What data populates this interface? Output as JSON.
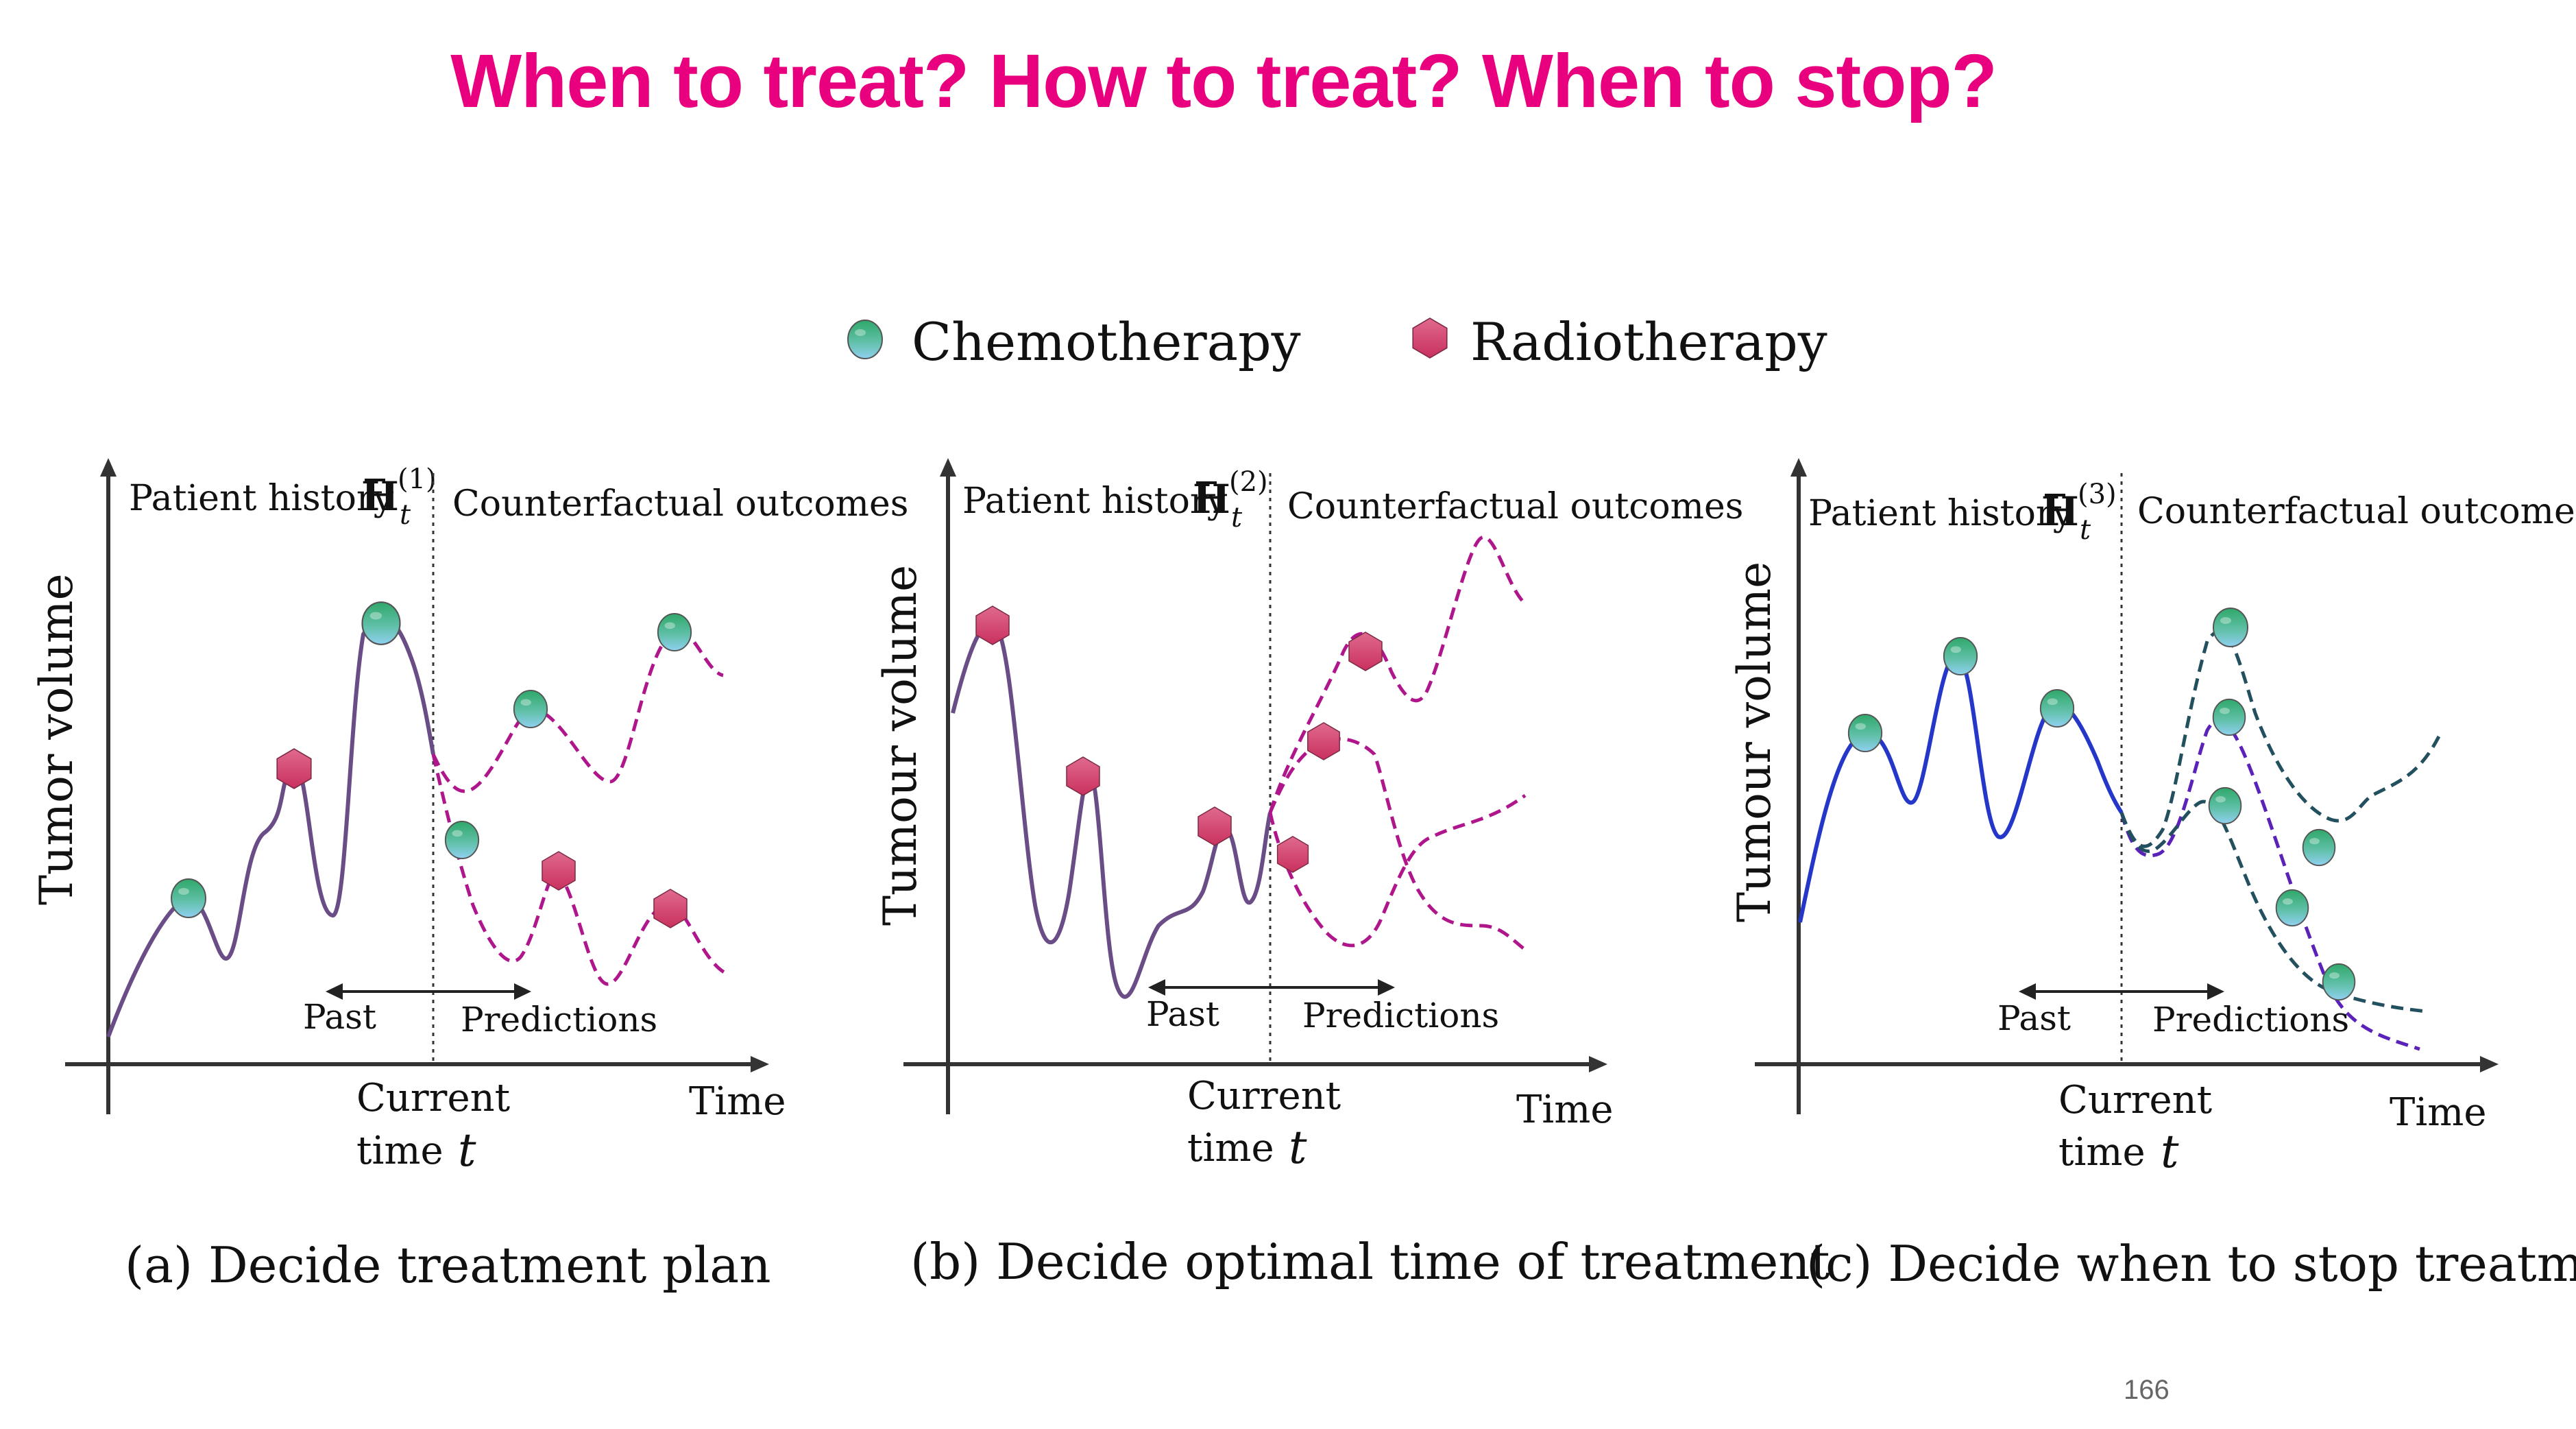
{
  "slide": {
    "title": "When to treat? How to treat? When to stop?",
    "page_number": "166"
  },
  "legend": {
    "chemo_label": "Chemotherapy",
    "radio_label": "Radiotherapy"
  },
  "panels": [
    {
      "ylabel": "Tumor volume",
      "history_label": "Patient history",
      "history_symbol": "H",
      "history_sub": "t",
      "history_sup": "(1)",
      "cf_label": "Counterfactual outcomes",
      "past_label": "Past",
      "pred_label": "Predictions",
      "current_line1": "Current",
      "current_line2": "time",
      "current_var": "t",
      "time_label": "Time",
      "caption": "(a) Decide treatment plan"
    },
    {
      "ylabel": "Tumour volume",
      "history_label": "Patient history",
      "history_symbol": "H",
      "history_sub": "t",
      "history_sup": "(2)",
      "cf_label": "Counterfactual outcomes",
      "past_label": "Past",
      "pred_label": "Predictions",
      "current_line1": "Current",
      "current_line2": "time",
      "current_var": "t",
      "time_label": "Time",
      "caption": "(b) Decide optimal time of treatment"
    },
    {
      "ylabel": "Tumour volume",
      "history_label": "Patient history",
      "history_symbol": "H",
      "history_sub": "t",
      "history_sup": "(3)",
      "cf_label": "Counterfactual outcomes",
      "past_label": "Past",
      "pred_label": "Predictions",
      "current_line1": "Current",
      "current_line2": "time",
      "current_var": "t",
      "time_label": "Time",
      "caption": "(c) Decide when to stop treatment"
    }
  ],
  "colors": {
    "title": "#e8007f",
    "history_curve_ab": "#6a4d86",
    "history_curve_c": "#2437c8",
    "prediction_magenta": "#b0168c",
    "prediction_teal": "#23505e",
    "prediction_purple": "#5a22b8",
    "chemo_marker_top": "#2fa86a",
    "chemo_marker_bottom": "#7cc6e8",
    "radio_marker": "#d6456e"
  },
  "icons": {
    "chemo": "green-blue-circle-icon",
    "radio": "pink-hexagon-icon"
  }
}
